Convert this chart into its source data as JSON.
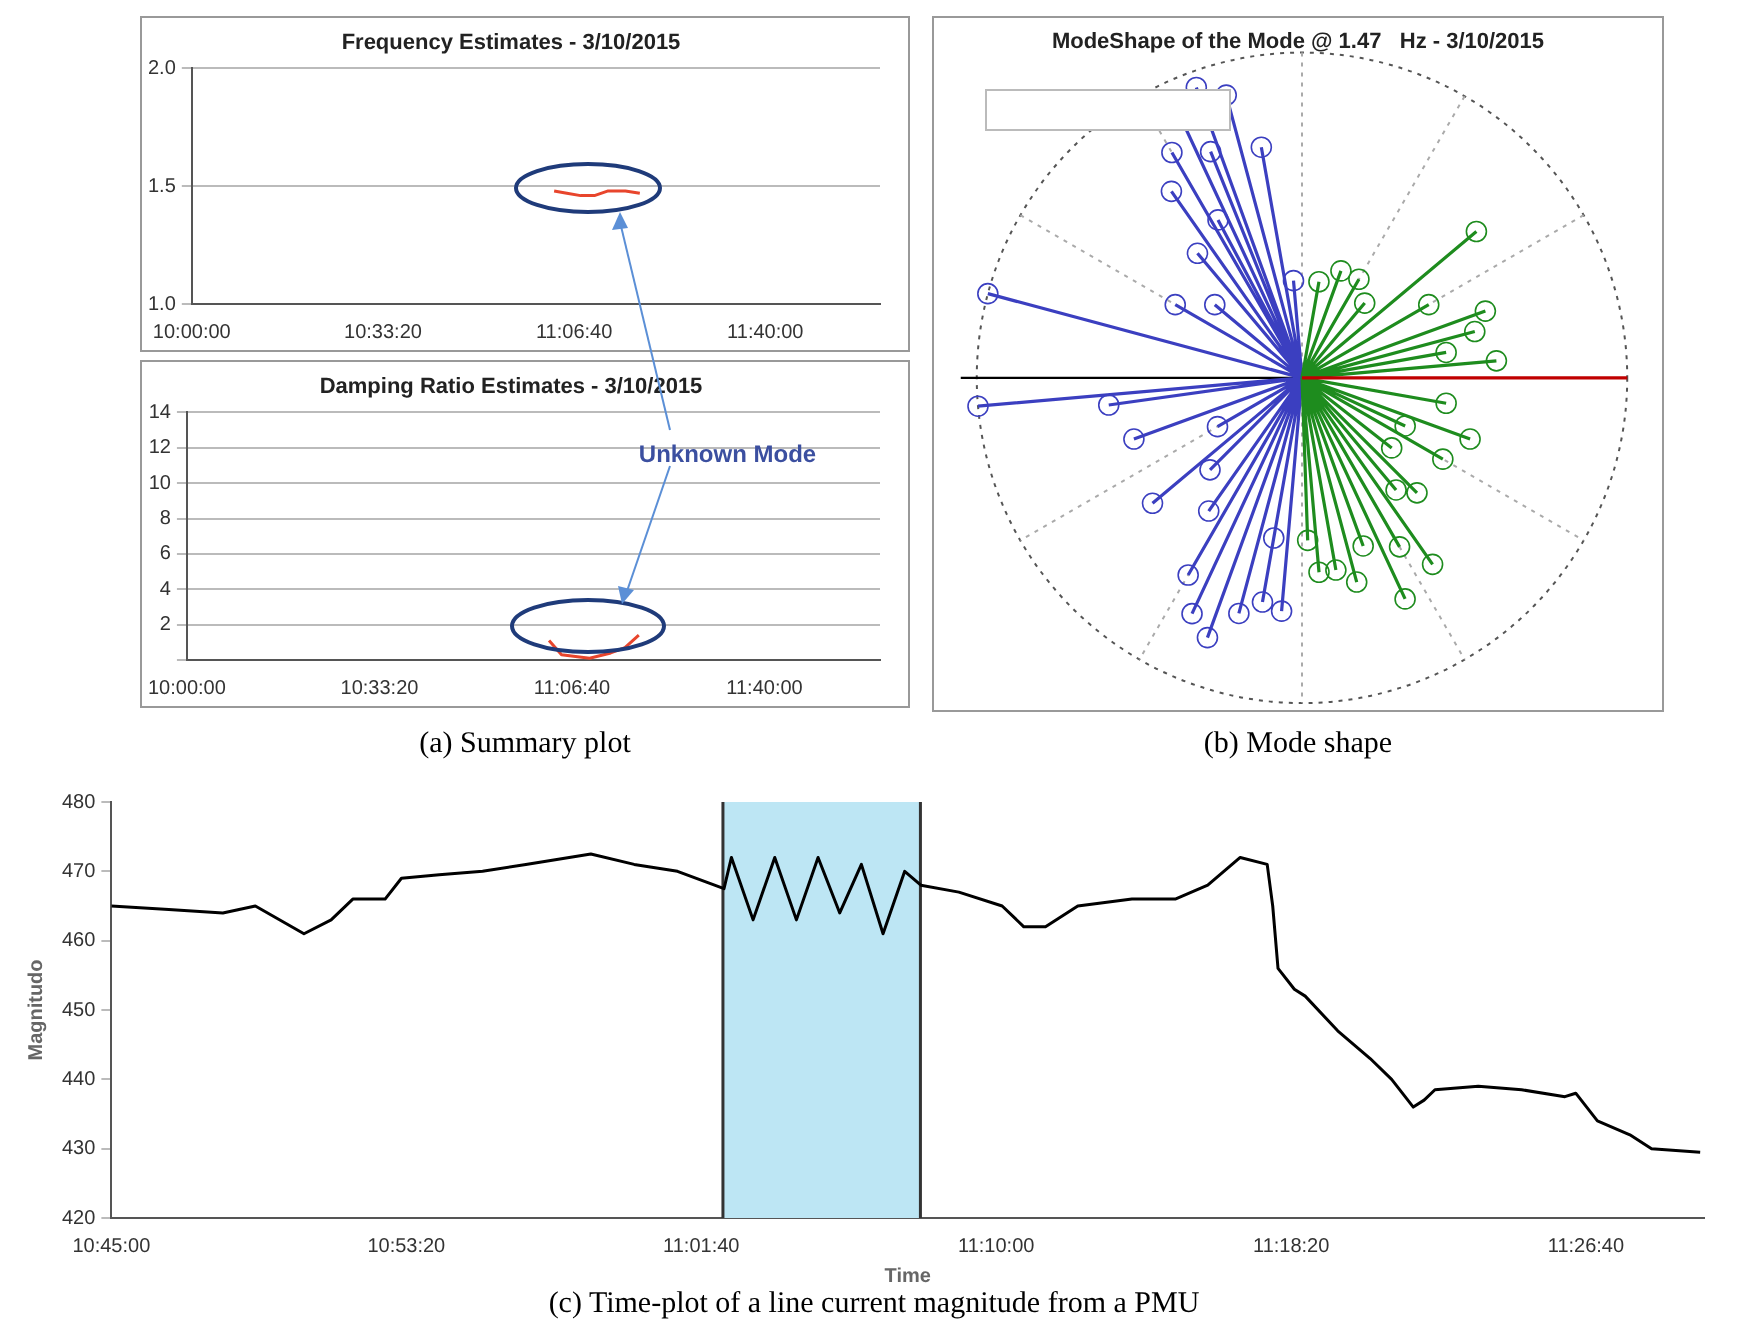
{
  "chart_data": [
    {
      "type": "line",
      "title": "Frequency Estimates - 3/10/2015",
      "x": [
        11.053,
        11.09,
        11.13,
        11.17,
        11.21,
        11.26,
        11.302
      ],
      "series": [
        {
          "color": "#e8452c",
          "values": [
            1.48,
            1.47,
            1.46,
            1.46,
            1.48,
            1.48,
            1.47
          ]
        }
      ],
      "xlim": [
        10,
        12
      ],
      "xticks": [
        {
          "value": 10,
          "label": "10:00:00"
        },
        {
          "value": 10.5556,
          "label": "10:33:20"
        },
        {
          "value": 11.1111,
          "label": "11:06:40"
        },
        {
          "value": 11.6667,
          "label": "11:40:00"
        }
      ],
      "ylim": [
        1,
        2
      ],
      "yticks": [
        {
          "value": 1,
          "label": "1.0"
        },
        {
          "value": 1.5,
          "label": "1.5"
        },
        {
          "value": 2,
          "label": "2.0"
        }
      ],
      "grid": "y"
    },
    {
      "type": "line",
      "title": "Damping Ratio Estimates - 3/10/2015",
      "x": [
        11.045,
        11.081,
        11.162,
        11.223,
        11.264,
        11.304
      ],
      "series": [
        {
          "color": "#e8452c",
          "values": [
            1.1,
            0.3,
            0.1,
            0.4,
            0.7,
            1.4
          ]
        }
      ],
      "xlim": [
        10,
        12
      ],
      "xticks": [
        {
          "value": 10,
          "label": "10:00:00"
        },
        {
          "value": 10.5556,
          "label": "10:33:20"
        },
        {
          "value": 11.1111,
          "label": "11:06:40"
        },
        {
          "value": 11.6667,
          "label": "11:40:00"
        }
      ],
      "ylim": [
        0,
        14
      ],
      "yticks": [
        {
          "value": 0,
          "label": null
        },
        2,
        4,
        6,
        8,
        10,
        12,
        14
      ],
      "grid": "y",
      "annotations": [
        "Unknown Mode",
        "(a) Summary plot"
      ]
    },
    {
      "type": "other",
      "title": "ModeShape of the Mode @ 1.47   Hz - 3/10/2015",
      "annotations": [
        "(b) Mode shape"
      ]
    },
    {
      "type": "line",
      "xlabel": "Time",
      "ylabel": "Magnitudo",
      "x": [
        10.75,
        10.777,
        10.8025,
        10.8178,
        10.8407,
        10.8535,
        10.8637,
        10.8789,
        10.8866,
        10.9044,
        10.9248,
        10.9452,
        10.9656,
        10.9758,
        10.9962,
        11.0166,
        11.0385,
        11.042,
        11.0522,
        11.0624,
        11.0726,
        11.0828,
        11.093,
        11.1032,
        11.1134,
        11.1236,
        11.1312,
        11.1491,
        11.1695,
        11.1797,
        11.1899,
        11.2051,
        11.2306,
        11.251,
        11.2663,
        11.2816,
        11.2943,
        11.2969,
        11.2994,
        11.3071,
        11.3122,
        11.3275,
        11.3428,
        11.3529,
        11.3631,
        11.3682,
        11.3733,
        11.3937,
        11.4141,
        11.4345,
        11.4396,
        11.4498,
        11.4651,
        11.4753,
        11.4982
      ],
      "series": [
        {
          "color": "#000000",
          "values": [
            465,
            464.5,
            464,
            465,
            461,
            463,
            466,
            466,
            469,
            469.5,
            470,
            471,
            472,
            472.5,
            471,
            470,
            467.5,
            472,
            463,
            472,
            463,
            472,
            464,
            471,
            461,
            470,
            468,
            467,
            465,
            462,
            462,
            465,
            466,
            466,
            468,
            472,
            471,
            465,
            456,
            453,
            452,
            447,
            443,
            440,
            436,
            437,
            438.5,
            439,
            438.5,
            437.5,
            438,
            434,
            432,
            430,
            429.5
          ]
        }
      ],
      "xlim": [
        10.75,
        11.5
      ],
      "xticks": [
        {
          "value": 10.75,
          "label": "10:45:00"
        },
        {
          "value": 10.8889,
          "label": "10:53:20"
        },
        {
          "value": 11.0278,
          "label": "11:01:40"
        },
        {
          "value": 11.1667,
          "label": "11:10:00"
        },
        {
          "value": 11.3056,
          "label": "11:18:20"
        },
        {
          "value": 11.4444,
          "label": "11:26:40"
        }
      ],
      "ylim": [
        420,
        480
      ],
      "yticks": [
        420,
        430,
        440,
        450,
        460,
        470,
        480
      ],
      "grid": false,
      "bands": [
        {
          "axis": "x",
          "from": 11.038,
          "to": 11.131,
          "color": "#bde6f4"
        }
      ],
      "ref_lines": [
        {
          "axis": "x",
          "value": 11.038,
          "color": "#333333"
        },
        {
          "axis": "x",
          "value": 11.131,
          "color": "#333333"
        }
      ],
      "annotations": [
        "(c) Time-plot of a line current magnitude from a PMU"
      ]
    }
  ]
}
